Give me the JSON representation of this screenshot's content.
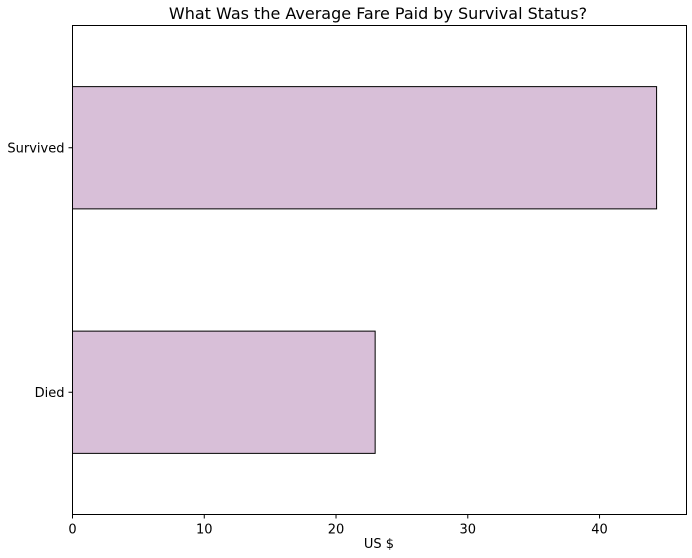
{
  "chart_data": {
    "type": "bar",
    "orientation": "horizontal",
    "title": "What Was the Average Fare Paid by Survival Status?",
    "xlabel": "US $",
    "ylabel": "",
    "categories": [
      "Died",
      "Survived"
    ],
    "values": [
      22.97,
      44.33
    ],
    "xlim": [
      0,
      46.6
    ],
    "xticks": [
      0,
      10,
      20,
      30,
      40
    ],
    "bar_color": "#d8bfd8",
    "bar_edge_color": "#000000",
    "grid": false,
    "legend": "none"
  }
}
